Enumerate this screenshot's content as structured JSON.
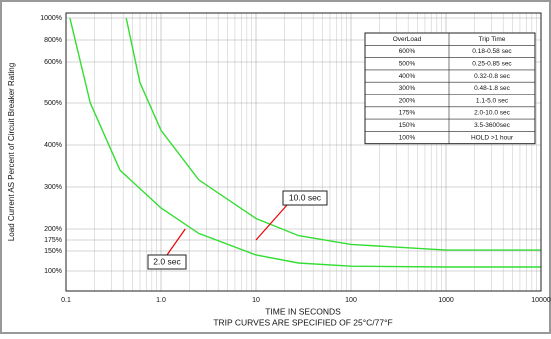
{
  "chart_data": {
    "type": "line",
    "xscale": "log",
    "grid": true,
    "xlabel": "TIME IN SECONDS",
    "subtitle": "TRIP CURVES ARE SPECIFIED OF 25°C/77°F",
    "ylabel": "Load Current AS Percent of Circuit Breaker Rating",
    "xlim": [
      0.1,
      10000
    ],
    "xticks": [
      0.1,
      {
        "value": 1,
        "label": "1.0"
      },
      10,
      100,
      1000,
      10000
    ],
    "ylim": [
      50,
      1000
    ],
    "yticks": [
      {
        "value": 100,
        "label": "100%"
      },
      {
        "value": 150,
        "label": "150%"
      },
      {
        "value": 175,
        "label": "175%"
      },
      {
        "value": 200,
        "label": "200%"
      },
      {
        "value": 300,
        "label": "300%"
      },
      {
        "value": 400,
        "label": "400%"
      },
      {
        "value": 500,
        "label": "500%"
      },
      {
        "value": 600,
        "label": "600%"
      },
      {
        "value": 800,
        "label": "800%"
      },
      {
        "value": 1000,
        "label": "1000%"
      }
    ],
    "series": [
      {
        "color": "#33dd33",
        "x": [
          0.11,
          0.18,
          0.37,
          1,
          2.5,
          10,
          28,
          100,
          1000,
          10000
        ],
        "values": [
          1000,
          500,
          340,
          250,
          190,
          140,
          120,
          112,
          110,
          110
        ]
      },
      {
        "color": "#33dd33",
        "x": [
          0.43,
          0.6,
          1,
          2.5,
          10,
          28,
          100,
          1000,
          10000
        ],
        "values": [
          1000,
          550,
          435,
          317,
          225,
          185,
          165,
          152,
          152
        ]
      }
    ],
    "annotations": [
      {
        "text": "10.0 sec",
        "x": 10,
        "y": 175
      },
      {
        "text": "2.0 sec",
        "x": 1.8,
        "y": 200
      }
    ],
    "table": {
      "header": [
        "OverLoad",
        "Trip Time"
      ],
      "rows": [
        [
          "600%",
          "0.18-0.58 sec"
        ],
        [
          "500%",
          "0.25-0.85 sec"
        ],
        [
          "400%",
          "0.32-0.8 sec"
        ],
        [
          "300%",
          "0.48-1.8 sec"
        ],
        [
          "200%",
          "1.1-5.0 sec"
        ],
        [
          "175%",
          "2.0-10.0 sec"
        ],
        [
          "150%",
          "3.5-3600sec"
        ],
        [
          "100%",
          "HOLD >1 hour"
        ]
      ]
    }
  }
}
